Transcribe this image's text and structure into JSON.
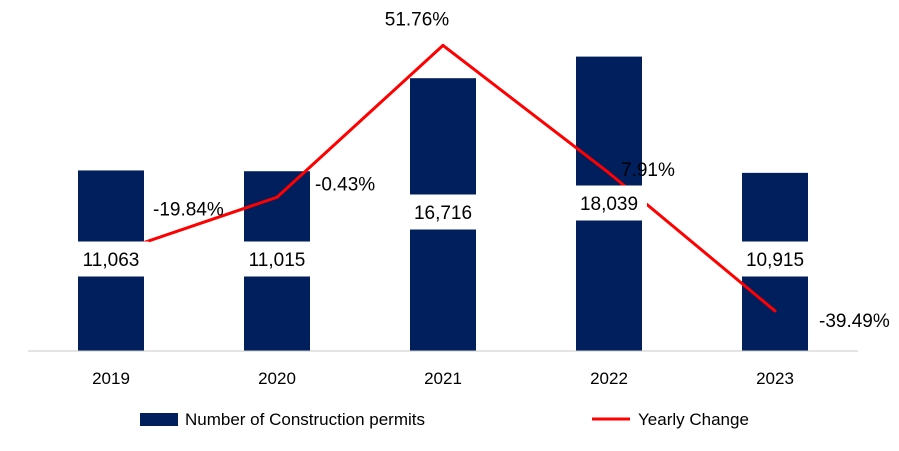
{
  "chart_data": {
    "type": "bar",
    "categories": [
      "2019",
      "2020",
      "2021",
      "2022",
      "2023"
    ],
    "series": [
      {
        "name": "Number of Construction permits",
        "type": "bar",
        "values": [
          11063,
          11015,
          16716,
          18039,
          10915
        ],
        "labels": [
          "11,063",
          "11,015",
          "16,716",
          "18,039",
          "10,915"
        ],
        "color": "#001f5c"
      },
      {
        "name": "Yearly Change",
        "type": "line",
        "values": [
          -19.84,
          -0.43,
          51.76,
          7.91,
          -39.49
        ],
        "labels": [
          "-19.84%",
          "-0.43%",
          "51.76%",
          "7.91%",
          "-39.49%"
        ],
        "color": "#ff0000"
      }
    ],
    "title": "",
    "xlabel": "",
    "ylabel": "",
    "grid": false,
    "legend": "bottom"
  }
}
